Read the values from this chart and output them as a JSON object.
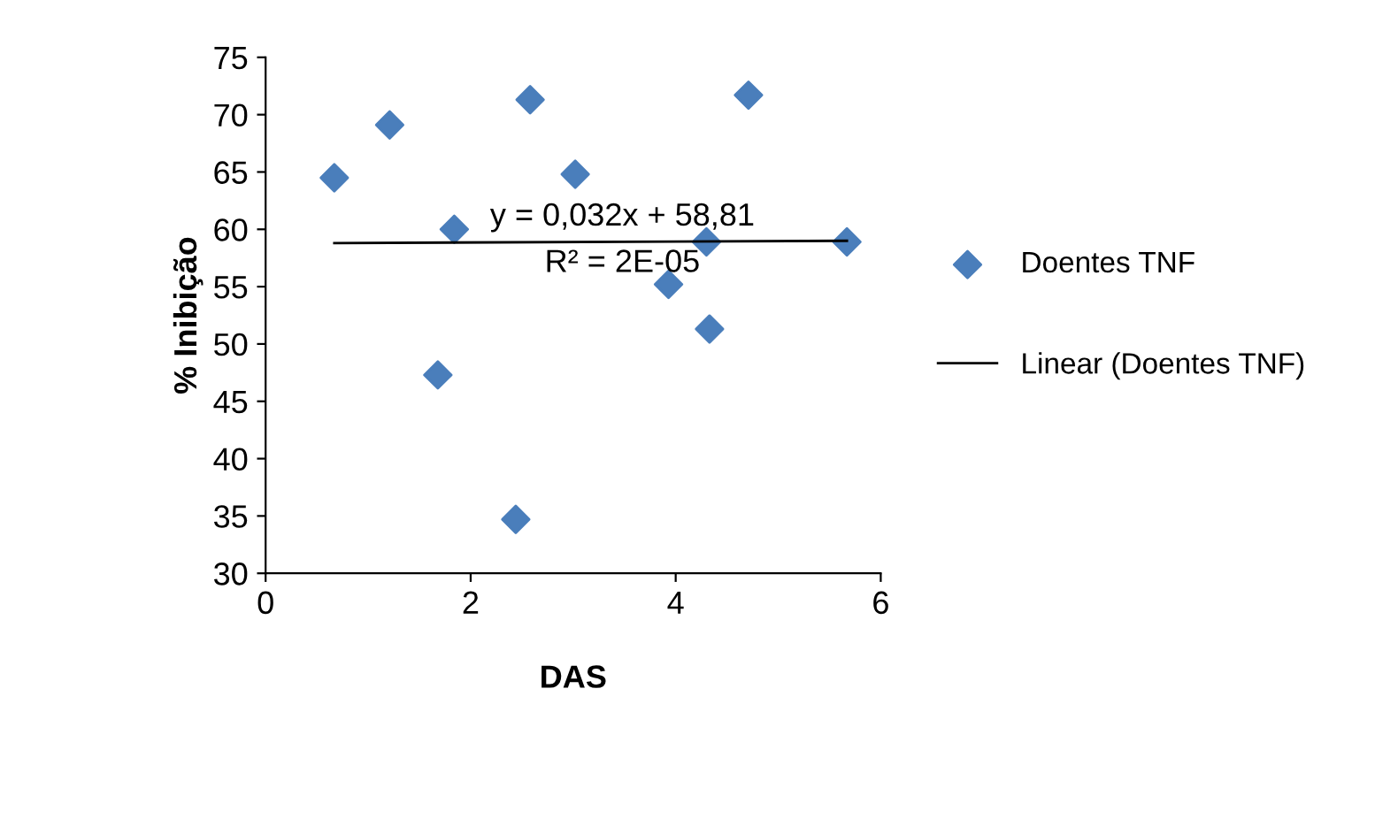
{
  "chart_data": {
    "type": "scatter",
    "xlabel": "DAS",
    "ylabel": "% Inibição",
    "xlim": [
      0,
      6
    ],
    "xticks": [
      0,
      2,
      4,
      6
    ],
    "ylim": [
      30,
      75
    ],
    "yticks": [
      30,
      35,
      40,
      45,
      50,
      55,
      60,
      65,
      70,
      75
    ],
    "legend": "right",
    "grid": false,
    "series": [
      {
        "name": "Doentes TNF",
        "marker": "diamond",
        "color": "#4a7ebb",
        "x": [
          0.67,
          1.21,
          1.84,
          1.68,
          2.44,
          2.58,
          3.02,
          3.93,
          4.3,
          4.33,
          4.71,
          5.67
        ],
        "values": [
          64.5,
          69.1,
          60.0,
          47.3,
          34.7,
          71.3,
          64.8,
          55.2,
          58.9,
          51.3,
          71.7,
          58.9
        ]
      },
      {
        "name": "Linear (Doentes TNF)",
        "type": "line",
        "color": "#000000",
        "x": [
          0.67,
          5.67
        ],
        "values": [
          58.8,
          59.0
        ]
      }
    ],
    "annotations": [
      "y = 0,032x + 58,81",
      "R² = 2E-05"
    ]
  }
}
